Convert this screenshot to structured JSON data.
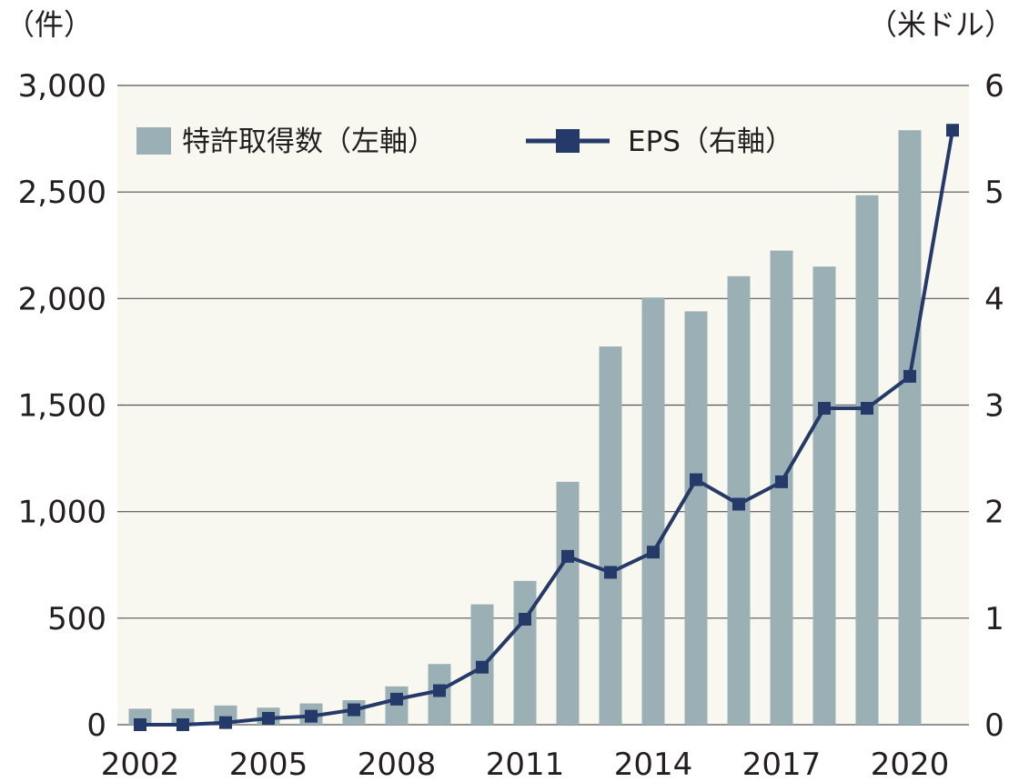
{
  "chart_data": {
    "type": "bar",
    "x": [
      2002,
      2003,
      2004,
      2005,
      2006,
      2007,
      2008,
      2009,
      2010,
      2011,
      2012,
      2013,
      2014,
      2015,
      2016,
      2017,
      2018,
      2019,
      2020,
      2021
    ],
    "x_tick_labels": [
      "2002",
      "2005",
      "2008",
      "2011",
      "2014",
      "2017",
      "2020"
    ],
    "y_left_unit": "（件）",
    "y_right_unit": "（米ドル）",
    "y_left_ticks": [
      "0",
      "500",
      "1,000",
      "1,500",
      "2,000",
      "2,500",
      "3,000"
    ],
    "y_right_ticks": [
      "0",
      "1",
      "2",
      "3",
      "4",
      "5",
      "6"
    ],
    "ylim_left": [
      0,
      3000
    ],
    "ylim_right": [
      0,
      6
    ],
    "grid": "horizontal",
    "legend_position": "top-left",
    "series": [
      {
        "name": "特許取得数（左軸）",
        "type": "bar",
        "axis": "left",
        "color": "#9bb0b5",
        "values": [
          75,
          75,
          90,
          80,
          100,
          115,
          180,
          285,
          565,
          675,
          1140,
          1775,
          2005,
          1940,
          2105,
          2225,
          2150,
          2485,
          2790,
          null
        ]
      },
      {
        "name": "EPS（右軸）",
        "type": "line",
        "axis": "right",
        "color": "#253a68",
        "values": [
          0.0,
          0.0,
          0.02,
          0.06,
          0.08,
          0.14,
          0.24,
          0.32,
          0.54,
          0.99,
          1.58,
          1.43,
          1.62,
          2.3,
          2.07,
          2.28,
          2.97,
          2.97,
          3.27,
          5.58
        ]
      }
    ]
  },
  "colors": {
    "plot_background": "#f8f7f0",
    "gridline": "#555555",
    "text": "#231f20"
  }
}
